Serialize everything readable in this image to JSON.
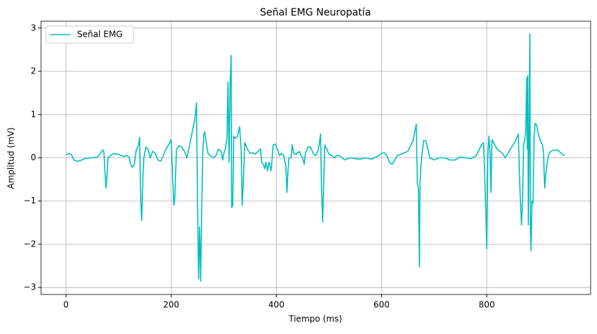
{
  "chart_data": {
    "type": "line",
    "title": "Señal EMG Neuropatía",
    "x_label": "Tiempo (ms)",
    "y_label": "Amplitud (mV)",
    "x": [
      0,
      5,
      10,
      15,
      20,
      25,
      30,
      35,
      40,
      50,
      60,
      65,
      70,
      72,
      74,
      76,
      78,
      80,
      85,
      90,
      100,
      110,
      115,
      120,
      123,
      126,
      130,
      133,
      138,
      140,
      142,
      144,
      146,
      148,
      152,
      156,
      160,
      165,
      170,
      175,
      180,
      185,
      190,
      195,
      200,
      203,
      205,
      207,
      210,
      215,
      220,
      225,
      230,
      235,
      240,
      245,
      248,
      250,
      252,
      254,
      256,
      258,
      260,
      262,
      264,
      266,
      270,
      275,
      280,
      285,
      290,
      295,
      298,
      300,
      303,
      306,
      308,
      310,
      312,
      314,
      315,
      317,
      319,
      322,
      326,
      330,
      333,
      335,
      337,
      340,
      345,
      350,
      355,
      360,
      365,
      370,
      372,
      375,
      378,
      380,
      383,
      386,
      390,
      394,
      398,
      402,
      406,
      410,
      414,
      418,
      420,
      422,
      424,
      428,
      430,
      433,
      437,
      441,
      444,
      447,
      450,
      453,
      455,
      460,
      465,
      470,
      475,
      480,
      484,
      486,
      488,
      490,
      492,
      496,
      500,
      505,
      510,
      515,
      520,
      525,
      530,
      540,
      550,
      560,
      570,
      580,
      590,
      600,
      605,
      610,
      615,
      620,
      625,
      630,
      640,
      650,
      660,
      666,
      668,
      670,
      672,
      673,
      676,
      680,
      684,
      688,
      692,
      700,
      710,
      720,
      730,
      740,
      750,
      760,
      770,
      780,
      790,
      794,
      796,
      798,
      800,
      802,
      804,
      806,
      808,
      810,
      815,
      820,
      825,
      830,
      835,
      840,
      845,
      850,
      855,
      860,
      863,
      866,
      868,
      870,
      872,
      874,
      876,
      877,
      878,
      879,
      880,
      882,
      883,
      884,
      886,
      888,
      890,
      892,
      895,
      898,
      902,
      906,
      908,
      910,
      912,
      914,
      918,
      922,
      928,
      935,
      940,
      948
    ],
    "series": [
      {
        "name": "Señal EMG",
        "color": "#00bfbf",
        "values": [
          0.07,
          0.1,
          0.08,
          -0.05,
          -0.08,
          -0.07,
          -0.05,
          -0.02,
          -0.01,
          0.0,
          0.02,
          0.1,
          0.18,
          0.15,
          -0.3,
          -0.7,
          -0.4,
          0.0,
          0.05,
          0.1,
          0.08,
          0.03,
          0.05,
          0.02,
          -0.15,
          -0.22,
          -0.15,
          0.15,
          0.3,
          0.47,
          -1.0,
          -1.45,
          -0.5,
          0.0,
          0.25,
          0.2,
          0.0,
          0.15,
          0.1,
          -0.05,
          -0.08,
          0.05,
          0.2,
          0.3,
          0.42,
          -0.5,
          -1.1,
          -0.9,
          0.2,
          0.28,
          0.25,
          0.15,
          0.0,
          0.3,
          0.6,
          0.9,
          1.27,
          -0.9,
          -2.8,
          -1.6,
          -2.85,
          -1.2,
          0.1,
          0.55,
          0.6,
          0.4,
          0.1,
          0.05,
          0.0,
          0.05,
          0.2,
          0.15,
          -0.05,
          0.1,
          0.2,
          0.45,
          1.75,
          -0.1,
          1.7,
          2.37,
          -1.15,
          -1.1,
          0.5,
          0.45,
          0.5,
          0.72,
          0.2,
          -1.1,
          -0.6,
          0.35,
          0.2,
          0.1,
          0.12,
          0.08,
          0.15,
          0.2,
          -0.1,
          -0.15,
          -0.25,
          -0.1,
          -0.3,
          -0.1,
          -0.3,
          0.3,
          0.32,
          0.2,
          0.05,
          0.1,
          0.05,
          -0.2,
          -0.8,
          -0.3,
          0.0,
          0.0,
          0.3,
          0.1,
          0.08,
          0.12,
          0.15,
          0.05,
          0.0,
          -0.15,
          0.1,
          0.25,
          0.25,
          0.1,
          0.05,
          0.2,
          0.55,
          -0.8,
          -1.48,
          -0.6,
          0.3,
          0.2,
          0.08,
          0.05,
          0.0,
          0.05,
          0.05,
          0.0,
          -0.05,
          0.0,
          -0.02,
          -0.03,
          0.0,
          -0.03,
          0.02,
          0.1,
          0.12,
          0.05,
          -0.1,
          -0.15,
          -0.05,
          0.05,
          0.1,
          0.15,
          0.4,
          0.78,
          -0.6,
          -0.7,
          -2.52,
          -0.6,
          0.0,
          0.4,
          0.4,
          0.2,
          0.0,
          -0.05,
          0.0,
          0.0,
          -0.05,
          -0.05,
          0.02,
          0.0,
          -0.02,
          0.05,
          0.3,
          0.35,
          -0.4,
          -1.15,
          -2.1,
          0.0,
          0.5,
          0.2,
          -0.8,
          0.42,
          0.3,
          0.2,
          0.15,
          0.1,
          0.0,
          0.1,
          0.2,
          0.3,
          0.4,
          0.55,
          -0.7,
          -1.55,
          -1.0,
          0.3,
          0.4,
          0.6,
          1.85,
          0.2,
          1.9,
          -1.55,
          -0.3,
          2.87,
          -1.6,
          -2.15,
          -1.0,
          -1.05,
          0.5,
          0.8,
          0.75,
          0.55,
          0.4,
          0.3,
          0.1,
          -0.7,
          -0.4,
          -0.2,
          0.1,
          0.15,
          0.18,
          0.18,
          0.12,
          0.05
        ]
      }
    ],
    "xlim": [
      -47.5,
      997.5
    ],
    "ylim": [
      -3.16,
      3.16
    ],
    "xticks": [
      0,
      200,
      400,
      600,
      800
    ],
    "yticks": [
      {
        "value": -3,
        "label": "−3"
      },
      {
        "value": -2,
        "label": "−2"
      },
      {
        "value": -1,
        "label": "−1"
      },
      0,
      1,
      2,
      3
    ],
    "grid": true,
    "legend": "upper left"
  }
}
